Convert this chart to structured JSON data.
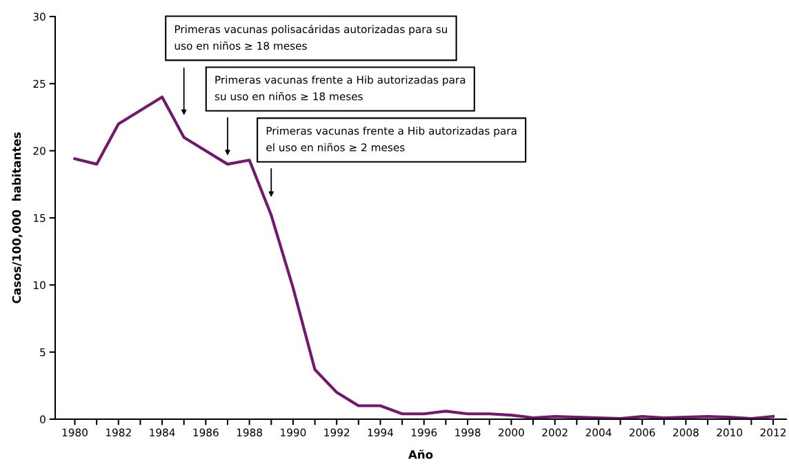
{
  "chart_data": {
    "type": "line",
    "xlabel": "Año",
    "ylabel": "Casos/100,000  habitantes",
    "x": [
      1980,
      1981,
      1982,
      1983,
      1984,
      1985,
      1986,
      1987,
      1988,
      1989,
      1990,
      1991,
      1992,
      1993,
      1994,
      1995,
      1996,
      1997,
      1998,
      1999,
      2000,
      2001,
      2002,
      2003,
      2004,
      2005,
      2006,
      2007,
      2008,
      2009,
      2010,
      2011,
      2012
    ],
    "series": [
      {
        "color": "#72186f",
        "values": [
          19.4,
          19.0,
          22.0,
          23.0,
          24.0,
          21.0,
          20.0,
          19.0,
          19.3,
          15.2,
          9.8,
          3.7,
          2.0,
          1.0,
          1.0,
          0.4,
          0.4,
          0.6,
          0.4,
          0.4,
          0.3,
          0.1,
          0.2,
          0.15,
          0.1,
          0.05,
          0.2,
          0.1,
          0.15,
          0.2,
          0.15,
          0.05,
          0.2
        ]
      }
    ],
    "xlim": [
      1979.1,
      2012.6
    ],
    "ylim": [
      0,
      30
    ],
    "xticks": [
      1980,
      {
        "value": 1981,
        "label": null
      },
      1982,
      {
        "value": 1983,
        "label": null
      },
      1984,
      {
        "value": 1985,
        "label": null
      },
      1986,
      {
        "value": 1987,
        "label": null
      },
      1988,
      {
        "value": 1989,
        "label": null
      },
      1990,
      {
        "value": 1991,
        "label": null
      },
      1992,
      {
        "value": 1993,
        "label": null
      },
      1994,
      {
        "value": 1995,
        "label": null
      },
      1996,
      {
        "value": 1997,
        "label": null
      },
      1998,
      {
        "value": 1999,
        "label": null
      },
      2000,
      {
        "value": 2001,
        "label": null
      },
      2002,
      {
        "value": 2003,
        "label": null
      },
      2004,
      {
        "value": 2005,
        "label": null
      },
      2006,
      {
        "value": 2007,
        "label": null
      },
      2008,
      {
        "value": 2009,
        "label": null
      },
      2010,
      {
        "value": 2011,
        "label": null
      },
      2012
    ],
    "yticks": [
      0,
      5,
      10,
      15,
      20,
      25,
      30
    ],
    "grid": false,
    "legend": false,
    "marker": "none",
    "line_style": "solid",
    "annotations": [
      "Primeras vacunas polisacáridas autorizadas para su\nuso en niños ≥ 18 meses",
      "Primeras vacunas frente a Hib autorizadas para\nsu uso en niños ≥ 18 meses",
      "Primeras vacunas frente a Hib autorizadas para\nel uso en niños ≥ 2 meses"
    ]
  }
}
